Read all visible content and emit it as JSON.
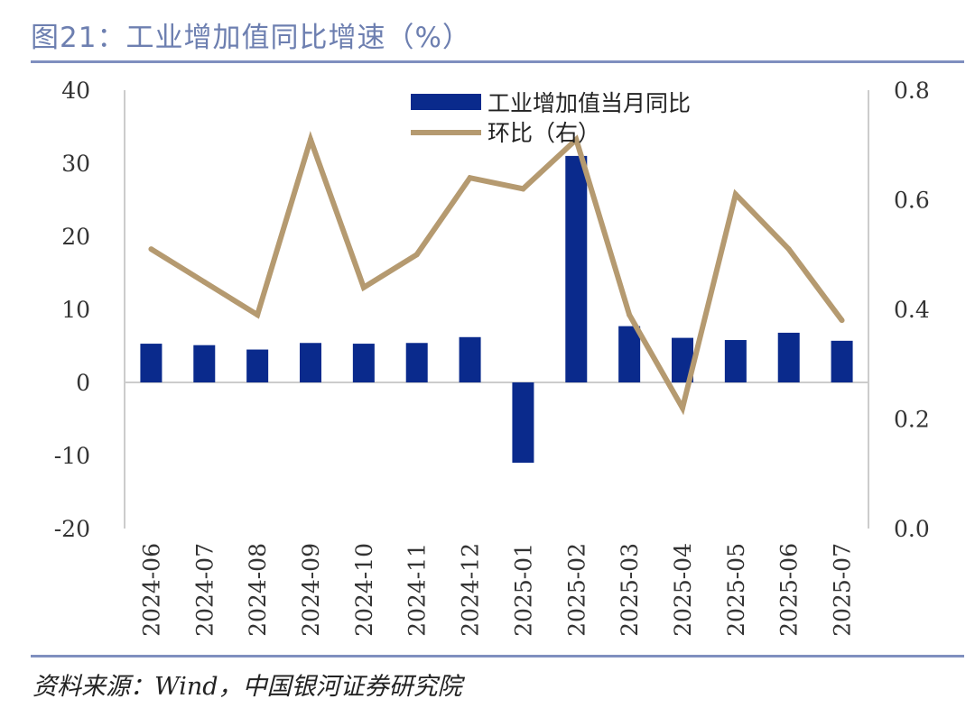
{
  "title": "图21：工业增加值同比增速（%）",
  "source": "资料来源：Wind，中国银河证券研究院",
  "colors": {
    "bar": "#0a2a8c",
    "line": "#b59a70",
    "axis": "#cccccc",
    "title": "#6d7fb0",
    "rule": "#7f8fbf"
  },
  "chart_data": {
    "type": "bar",
    "title": "图21：工业增加值同比增速（%）",
    "categories": [
      "2024-06",
      "2024-07",
      "2024-08",
      "2024-09",
      "2024-10",
      "2024-11",
      "2024-12",
      "2025-01",
      "2025-02",
      "2025-03",
      "2025-04",
      "2025-05",
      "2025-06",
      "2025-07"
    ],
    "series": [
      {
        "name": "工业增加值当月同比",
        "type": "bar",
        "axis": "left",
        "values": [
          5.3,
          5.1,
          4.5,
          5.4,
          5.3,
          5.4,
          6.2,
          -11.0,
          31.0,
          7.7,
          6.1,
          5.8,
          6.8,
          5.7
        ]
      },
      {
        "name": "环比（右）",
        "type": "line",
        "axis": "right",
        "values": [
          0.51,
          0.45,
          0.39,
          0.71,
          0.44,
          0.5,
          0.64,
          0.62,
          0.71,
          0.39,
          0.22,
          0.61,
          0.51,
          0.38
        ]
      }
    ],
    "left_axis": {
      "ylim": [
        -20,
        40
      ],
      "ticks": [
        "40",
        "30",
        "20",
        "10",
        "0",
        "-10",
        "-20"
      ]
    },
    "right_axis": {
      "ylim": [
        0.0,
        0.8
      ],
      "ticks": [
        "0.8",
        "0.6",
        "0.4",
        "0.2",
        "0.0"
      ]
    },
    "legend_position": "top-center",
    "grid": false
  }
}
